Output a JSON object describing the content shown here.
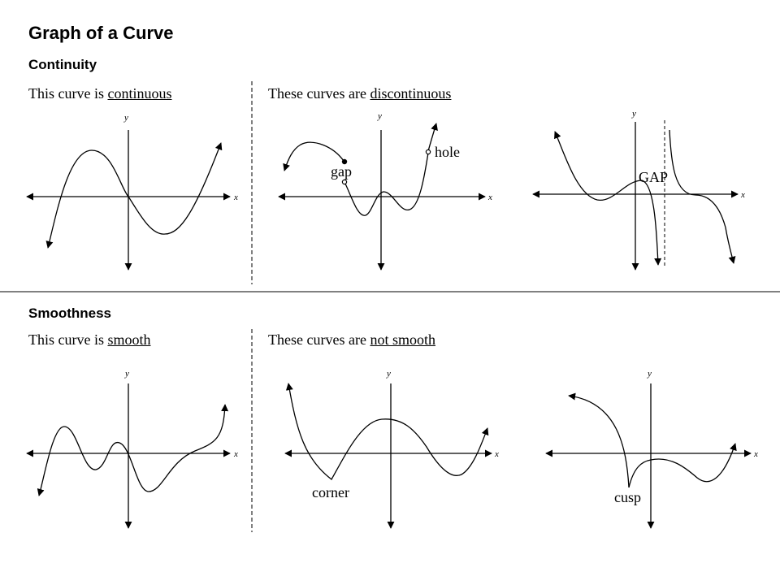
{
  "title": "Graph of a Curve",
  "continuity": {
    "heading": "Continuity",
    "left_caption_prefix": "This curve is ",
    "left_caption_term": "continuous",
    "right_caption_prefix": "These curves are ",
    "right_caption_term": "discontinuous",
    "labels": {
      "gap": "gap",
      "hole": "hole",
      "GAP": "GAP"
    }
  },
  "smoothness": {
    "heading": "Smoothness",
    "left_caption_prefix": "This curve is ",
    "left_caption_term": "smooth",
    "right_caption_prefix": "These curves are ",
    "right_caption_term": "not smooth",
    "labels": {
      "corner": "corner",
      "cusp": "cusp"
    }
  },
  "axis_labels": {
    "x": "x",
    "y": "y"
  }
}
